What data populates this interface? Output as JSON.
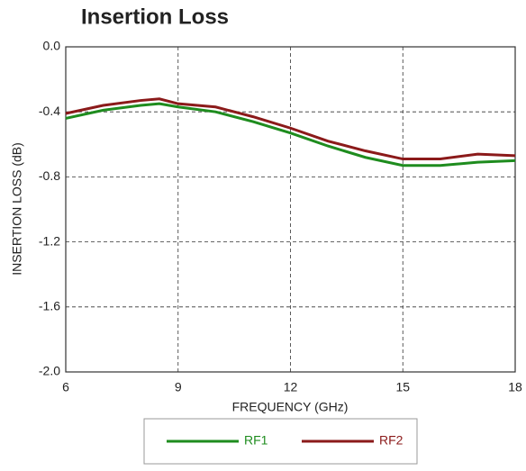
{
  "chart_data": {
    "type": "line",
    "title": "Insertion Loss",
    "x_label": "FREQUENCY (GHz)",
    "y_label": "INSERTION LOSS (dB)",
    "x": [
      6,
      7,
      8,
      8.5,
      9,
      10,
      11,
      12,
      13,
      14,
      15,
      16,
      17,
      18
    ],
    "series": [
      {
        "name": "RF1",
        "color": "#1e8c1e",
        "values": [
          -0.44,
          -0.39,
          -0.36,
          -0.35,
          -0.37,
          -0.4,
          -0.46,
          -0.53,
          -0.61,
          -0.68,
          -0.73,
          -0.73,
          -0.71,
          -0.7
        ]
      },
      {
        "name": "RF2",
        "color": "#8b1a1a",
        "values": [
          -0.41,
          -0.36,
          -0.33,
          -0.32,
          -0.35,
          -0.37,
          -0.43,
          -0.5,
          -0.58,
          -0.64,
          -0.69,
          -0.69,
          -0.66,
          -0.67
        ]
      }
    ],
    "xlim": [
      6,
      18
    ],
    "xticks": [
      6,
      9,
      12,
      15,
      18
    ],
    "ylim": [
      -2,
      0
    ],
    "yticks": [
      {
        "value": 0,
        "label": "0.0"
      },
      -0.4,
      -0.8,
      -1.2,
      -1.6,
      {
        "value": -2,
        "label": "-2.0"
      }
    ],
    "grid": true,
    "legend": "bottom"
  }
}
